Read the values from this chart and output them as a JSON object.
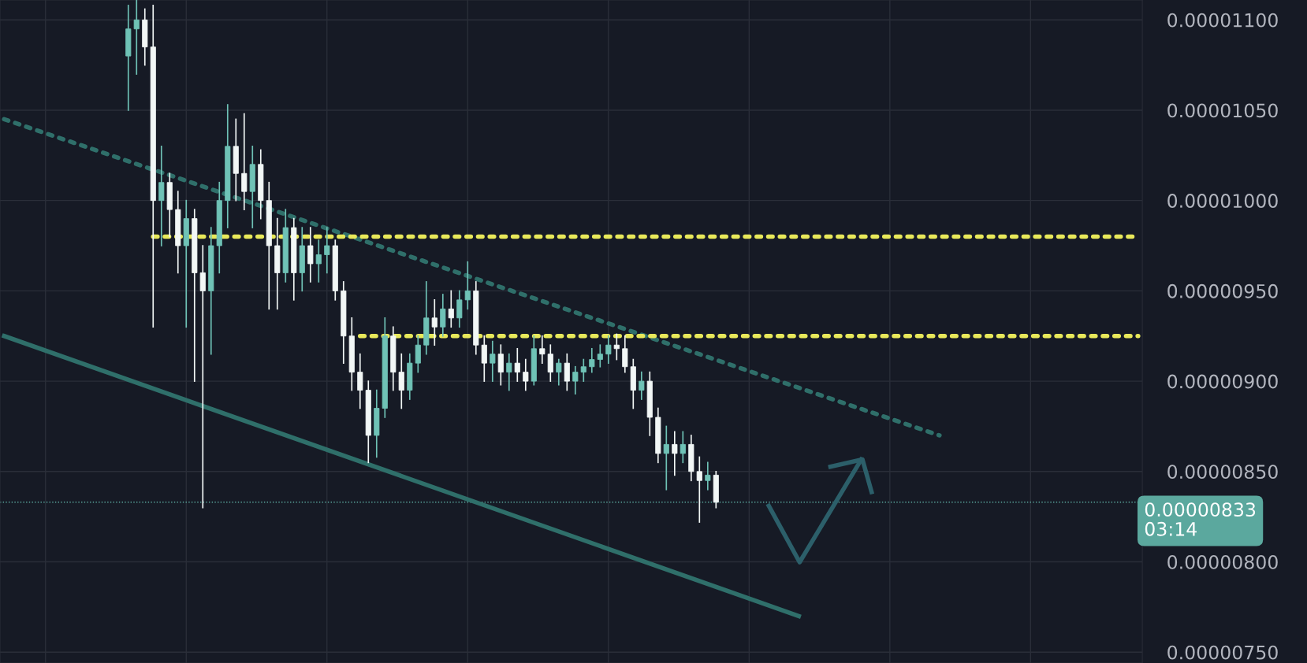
{
  "chart_data": {
    "type": "candlestick",
    "categories": [
      null,
      null,
      null,
      null,
      null,
      null,
      null,
      null,
      null,
      null,
      null,
      null,
      null,
      null,
      null,
      null,
      null,
      null,
      null,
      null,
      null,
      null,
      null,
      null,
      null,
      null,
      null,
      null,
      null,
      null,
      null,
      null,
      null,
      null,
      null,
      null,
      null,
      null,
      null,
      null,
      null,
      null,
      null,
      null,
      null,
      null,
      null,
      null,
      null,
      null,
      null,
      null,
      null,
      null,
      null,
      null,
      null,
      null,
      null,
      null,
      null,
      null,
      null,
      null,
      null,
      null,
      null,
      null,
      null,
      null,
      null,
      null,
      null,
      null,
      null,
      null,
      null,
      null,
      null,
      null,
      null,
      null,
      null,
      null,
      null,
      null,
      null,
      null,
      null,
      null,
      null,
      null,
      null,
      null,
      null,
      null,
      null,
      null,
      null,
      null,
      null,
      null,
      null,
      null,
      null,
      null,
      null,
      null,
      null,
      null,
      null,
      null,
      null,
      null,
      null,
      null,
      null,
      null,
      null,
      null,
      null,
      null,
      null,
      null,
      null,
      null,
      null,
      null,
      null,
      null,
      null,
      null,
      null,
      null,
      null,
      null,
      null,
      null
    ],
    "ylim": [
      7.44e-06,
      1.111e-05
    ],
    "yticks": [
      {
        "value": 1.1e-05,
        "label": "0.00001100"
      },
      {
        "value": 1.05e-05,
        "label": "0.00001050"
      },
      {
        "value": 1e-05,
        "label": "0.00001000"
      },
      {
        "value": 9.5e-06,
        "label": "0.00000950"
      },
      {
        "value": 9e-06,
        "label": "0.00000900"
      },
      {
        "value": 8.5e-06,
        "label": "0.00000850"
      },
      {
        "value": 8e-06,
        "label": "0.00000800"
      },
      {
        "value": 7.5e-06,
        "label": "0.00000750"
      }
    ],
    "grid": true,
    "tick_labels": "y",
    "series": [
      {
        "colors": [
          null,
          null,
          null,
          null,
          null,
          null,
          null,
          null,
          null,
          null,
          null,
          null,
          null,
          null,
          null,
          "#6fc2b6",
          "#6fc2b6",
          "#f2f7f6",
          "#f2f7f6",
          "#6fc2b6",
          "#f2f7f6",
          "#f2f7f6",
          "#6fc2b6",
          "#f2f7f6",
          "#f2f7f6",
          "#6fc2b6",
          "#6fc2b6",
          "#6fc2b6",
          "#f2f7f6",
          "#f2f7f6",
          "#6fc2b6",
          "#f2f7f6",
          "#f2f7f6",
          "#f2f7f6",
          "#6fc2b6",
          "#f2f7f6",
          "#6fc2b6",
          "#f2f7f6",
          "#6fc2b6",
          "#6fc2b6",
          "#f2f7f6",
          "#f2f7f6",
          "#f2f7f6",
          "#f2f7f6",
          "#f2f7f6",
          "#6fc2b6",
          "#6fc2b6",
          "#f2f7f6",
          "#f2f7f6",
          "#6fc2b6",
          "#6fc2b6",
          "#6fc2b6",
          "#f2f7f6",
          "#6fc2b6",
          "#f2f7f6",
          "#6fc2b6",
          "#6fc2b6",
          "#f2f7f6",
          "#f2f7f6",
          "#6fc2b6",
          "#f2f7f6",
          "#6fc2b6",
          "#f2f7f6",
          "#f2f7f6",
          "#6fc2b6",
          "#f2f7f6",
          "#f2f7f6",
          "#6fc2b6",
          "#f2f7f6",
          "#6fc2b6",
          "#6fc2b6",
          "#6fc2b6",
          "#6fc2b6",
          "#6fc2b6",
          "#f2f7f6",
          "#f2f7f6",
          "#f2f7f6",
          "#6fc2b6",
          "#f2f7f6",
          "#f2f7f6",
          "#6fc2b6",
          "#f2f7f6",
          "#6fc2b6",
          "#f2f7f6",
          "#f2f7f6",
          "#6fc2b6",
          "#f2f7f6",
          null,
          null,
          null,
          null,
          null,
          null,
          null,
          null,
          null,
          null,
          null,
          null,
          null,
          null,
          null,
          null,
          null,
          null,
          null,
          null,
          null,
          null,
          null,
          null,
          null,
          null,
          null,
          null,
          null,
          null,
          null,
          null,
          null,
          null,
          null,
          null,
          null,
          null,
          null,
          null,
          null,
          null,
          null,
          null,
          null,
          null,
          null,
          null,
          null,
          null,
          null
        ],
        "ohlc": [
          null,
          null,
          null,
          null,
          null,
          null,
          null,
          null,
          null,
          null,
          null,
          null,
          null,
          null,
          null,
          [
            1.08e-05,
            1.108e-05,
            1.05e-05,
            1.095e-05
          ],
          [
            1.095e-05,
            1.111e-05,
            1.07e-05,
            1.1e-05
          ],
          [
            1.1e-05,
            1.106e-05,
            1.075e-05,
            1.085e-05
          ],
          [
            1.085e-05,
            1.108e-05,
            9.3e-06,
            1e-05
          ],
          [
            1e-05,
            1.03e-05,
            9.75e-06,
            1.01e-05
          ],
          [
            1.01e-05,
            1.015e-05,
            9.8e-06,
            9.95e-06
          ],
          [
            9.95e-06,
            1.005e-05,
            9.6e-06,
            9.75e-06
          ],
          [
            9.75e-06,
            1e-05,
            9.3e-06,
            9.9e-06
          ],
          [
            9.9e-06,
            9.95e-06,
            9e-06,
            9.6e-06
          ],
          [
            9.6e-06,
            9.75e-06,
            8.3e-06,
            9.5e-06
          ],
          [
            9.5e-06,
            9.85e-06,
            9.15e-06,
            9.75e-06
          ],
          [
            9.75e-06,
            1.01e-05,
            9.6e-06,
            1e-05
          ],
          [
            1e-05,
            1.053e-05,
            9.85e-06,
            1.03e-05
          ],
          [
            1.03e-05,
            1.045e-05,
            1e-05,
            1.015e-05
          ],
          [
            1.015e-05,
            1.048e-05,
            9.95e-06,
            1.005e-05
          ],
          [
            1.005e-05,
            1.03e-05,
            9.85e-06,
            1.02e-05
          ],
          [
            1.02e-05,
            1.028e-05,
            9.9e-06,
            1e-05
          ],
          [
            1e-05,
            1.01e-05,
            9.4e-06,
            9.75e-06
          ],
          [
            9.75e-06,
            9.9e-06,
            9.4e-06,
            9.6e-06
          ],
          [
            9.6e-06,
            9.95e-06,
            9.55e-06,
            9.85e-06
          ],
          [
            9.85e-06,
            9.9e-06,
            9.45e-06,
            9.6e-06
          ],
          [
            9.6e-06,
            9.85e-06,
            9.5e-06,
            9.75e-06
          ],
          [
            9.75e-06,
            9.85e-06,
            9.55e-06,
            9.65e-06
          ],
          [
            9.65e-06,
            9.78e-06,
            9.55e-06,
            9.7e-06
          ],
          [
            9.7e-06,
            9.85e-06,
            9.6e-06,
            9.75e-06
          ],
          [
            9.75e-06,
            9.78e-06,
            9.45e-06,
            9.5e-06
          ],
          [
            9.5e-06,
            9.55e-06,
            9.1e-06,
            9.25e-06
          ],
          [
            9.25e-06,
            9.35e-06,
            8.95e-06,
            9.05e-06
          ],
          [
            9.05e-06,
            9.15e-06,
            8.85e-06,
            8.95e-06
          ],
          [
            8.95e-06,
            9e-06,
            8.55e-06,
            8.7e-06
          ],
          [
            8.7e-06,
            8.95e-06,
            8.58e-06,
            8.85e-06
          ],
          [
            8.85e-06,
            9.35e-06,
            8.8e-06,
            9.25e-06
          ],
          [
            9.25e-06,
            9.3e-06,
            8.95e-06,
            9.05e-06
          ],
          [
            9.05e-06,
            9.15e-06,
            8.85e-06,
            8.95e-06
          ],
          [
            8.95e-06,
            9.15e-06,
            8.9e-06,
            9.1e-06
          ],
          [
            9.1e-06,
            9.25e-06,
            9.05e-06,
            9.2e-06
          ],
          [
            9.2e-06,
            9.55e-06,
            9.15e-06,
            9.35e-06
          ],
          [
            9.35e-06,
            9.45e-06,
            9.2e-06,
            9.3e-06
          ],
          [
            9.3e-06,
            9.48e-06,
            9.25e-06,
            9.4e-06
          ],
          [
            9.4e-06,
            9.5e-06,
            9.3e-06,
            9.35e-06
          ],
          [
            9.35e-06,
            9.5e-06,
            9.3e-06,
            9.45e-06
          ],
          [
            9.45e-06,
            9.66e-06,
            9.4e-06,
            9.5e-06
          ],
          [
            9.5e-06,
            9.55e-06,
            9.15e-06,
            9.2e-06
          ],
          [
            9.2e-06,
            9.25e-06,
            9e-06,
            9.1e-06
          ],
          [
            9.1e-06,
            9.22e-06,
            9e-06,
            9.15e-06
          ],
          [
            9.15e-06,
            9.2e-06,
            8.98e-06,
            9.05e-06
          ],
          [
            9.05e-06,
            9.15e-06,
            8.95e-06,
            9.1e-06
          ],
          [
            9.1e-06,
            9.18e-06,
            9e-06,
            9.05e-06
          ],
          [
            9.05e-06,
            9.12e-06,
            8.95e-06,
            9e-06
          ],
          [
            9e-06,
            9.25e-06,
            8.98e-06,
            9.18e-06
          ],
          [
            9.18e-06,
            9.25e-06,
            9.1e-06,
            9.15e-06
          ],
          [
            9.15e-06,
            9.2e-06,
            9e-06,
            9.05e-06
          ],
          [
            9.05e-06,
            9.12e-06,
            8.98e-06,
            9.1e-06
          ],
          [
            9.1e-06,
            9.15e-06,
            8.95e-06,
            9e-06
          ],
          [
            9e-06,
            9.08e-06,
            8.93e-06,
            9.05e-06
          ],
          [
            9.05e-06,
            9.12e-06,
            9e-06,
            9.08e-06
          ],
          [
            9.08e-06,
            9.18e-06,
            9.05e-06,
            9.12e-06
          ],
          [
            9.12e-06,
            9.2e-06,
            9.08e-06,
            9.15e-06
          ],
          [
            9.15e-06,
            9.25e-06,
            9.1e-06,
            9.2e-06
          ],
          [
            9.2e-06,
            9.26e-06,
            9.12e-06,
            9.18e-06
          ],
          [
            9.18e-06,
            9.25e-06,
            9.05e-06,
            9.08e-06
          ],
          [
            9.08e-06,
            9.12e-06,
            8.85e-06,
            8.95e-06
          ],
          [
            8.95e-06,
            9.05e-06,
            8.9e-06,
            9e-06
          ],
          [
            9e-06,
            9.05e-06,
            8.7e-06,
            8.8e-06
          ],
          [
            8.8e-06,
            8.85e-06,
            8.55e-06,
            8.6e-06
          ],
          [
            8.6e-06,
            8.75e-06,
            8.4e-06,
            8.65e-06
          ],
          [
            8.65e-06,
            8.72e-06,
            8.48e-06,
            8.6e-06
          ],
          [
            8.6e-06,
            8.72e-06,
            8.55e-06,
            8.65e-06
          ],
          [
            8.65e-06,
            8.7e-06,
            8.45e-06,
            8.5e-06
          ],
          [
            8.5e-06,
            8.58e-06,
            8.22e-06,
            8.45e-06
          ],
          [
            8.45e-06,
            8.55e-06,
            8.4e-06,
            8.48e-06
          ],
          [
            8.48e-06,
            8.5e-06,
            8.3e-06,
            8.33e-06
          ],
          null,
          null,
          null,
          null,
          null,
          null,
          null,
          null,
          null,
          null,
          null,
          null,
          null,
          null,
          null,
          null,
          null,
          null,
          null,
          null,
          null,
          null,
          null,
          null,
          null,
          null,
          null,
          null,
          null,
          null,
          null,
          null,
          null,
          null,
          null,
          null,
          null,
          null,
          null,
          null,
          null,
          null,
          null,
          null,
          null,
          null,
          null,
          null,
          null,
          null,
          null
        ]
      },
      {
        "type": "line",
        "color": "#2f6f6a",
        "line_style": "dotted",
        "values": [
          1.045e-05,
          null,
          null,
          null,
          null,
          null,
          null,
          null,
          null,
          null,
          null,
          null,
          null,
          null,
          null,
          null,
          null,
          null,
          null,
          null,
          null,
          null,
          null,
          null,
          null,
          null,
          null,
          null,
          null,
          null,
          null,
          null,
          null,
          null,
          null,
          null,
          null,
          null,
          null,
          null,
          null,
          null,
          null,
          null,
          null,
          null,
          null,
          null,
          null,
          null,
          null,
          null,
          null,
          null,
          null,
          null,
          null,
          null,
          null,
          null,
          null,
          null,
          null,
          null,
          null,
          null,
          null,
          null,
          null,
          null,
          null,
          null,
          null,
          null,
          null,
          null,
          null,
          null,
          null,
          null,
          null,
          null,
          null,
          null,
          null,
          null,
          null,
          null,
          null,
          null,
          null,
          null,
          null,
          null,
          null,
          null,
          null,
          null,
          null,
          null,
          null,
          null,
          null,
          null,
          null,
          null,
          null,
          null,
          null,
          null,
          null,
          null,
          null,
          8.7e-06,
          null,
          null,
          null,
          null,
          null,
          null,
          null,
          null,
          null,
          null,
          null,
          null,
          null,
          null,
          null,
          null,
          null,
          null,
          null,
          null,
          null,
          null,
          null,
          null
        ]
      },
      {
        "type": "line",
        "color": "#2f6f6a",
        "line_style": "solid",
        "values": [
          9.25e-06,
          null,
          null,
          null,
          null,
          null,
          null,
          null,
          null,
          null,
          null,
          null,
          null,
          null,
          null,
          null,
          null,
          null,
          null,
          null,
          null,
          null,
          null,
          null,
          null,
          null,
          null,
          null,
          null,
          null,
          null,
          null,
          null,
          null,
          null,
          null,
          null,
          null,
          null,
          null,
          null,
          null,
          null,
          null,
          null,
          null,
          null,
          null,
          null,
          null,
          null,
          null,
          null,
          null,
          null,
          null,
          null,
          null,
          null,
          null,
          null,
          null,
          null,
          null,
          null,
          null,
          null,
          null,
          null,
          null,
          null,
          null,
          null,
          null,
          null,
          null,
          null,
          null,
          null,
          null,
          null,
          null,
          null,
          null,
          null,
          null,
          null,
          null,
          null,
          null,
          null,
          null,
          null,
          null,
          null,
          null,
          7.7e-06,
          null,
          null,
          null,
          null,
          null,
          null,
          null,
          null,
          null,
          null,
          null,
          null,
          null,
          null,
          null,
          null,
          null,
          null,
          null,
          null,
          null,
          null,
          null,
          null,
          null,
          null,
          null,
          null,
          null,
          null,
          null,
          null,
          null,
          null,
          null,
          null,
          null,
          null,
          null,
          null,
          null
        ]
      },
      {
        "type": "line",
        "color": "#e8e85a",
        "line_style": "dotted",
        "values": [
          null,
          null,
          null,
          null,
          null,
          null,
          null,
          null,
          null,
          null,
          null,
          null,
          null,
          null,
          null,
          null,
          null,
          null,
          9.8e-06,
          null,
          null,
          null,
          null,
          null,
          null,
          null,
          null,
          null,
          null,
          null,
          null,
          null,
          null,
          null,
          null,
          null,
          null,
          null,
          null,
          null,
          null,
          null,
          null,
          null,
          null,
          null,
          null,
          null,
          null,
          null,
          null,
          null,
          null,
          null,
          null,
          null,
          null,
          null,
          null,
          null,
          null,
          null,
          null,
          null,
          null,
          null,
          null,
          null,
          null,
          null,
          null,
          null,
          null,
          null,
          null,
          null,
          null,
          null,
          null,
          null,
          null,
          null,
          null,
          null,
          null,
          null,
          null,
          null,
          null,
          null,
          null,
          null,
          null,
          null,
          null,
          null,
          null,
          null,
          null,
          null,
          null,
          null,
          null,
          null,
          null,
          null,
          null,
          null,
          null,
          null,
          null,
          null,
          null,
          null,
          null,
          null,
          null,
          null,
          null,
          null,
          null,
          null,
          null,
          null,
          null,
          null,
          null,
          null,
          null,
          null,
          null,
          null,
          null,
          null,
          null,
          null,
          null,
          9.8e-06
        ]
      },
      {
        "type": "line",
        "color": "#e8e85a",
        "line_style": "dotted",
        "values": [
          null,
          null,
          null,
          null,
          null,
          null,
          null,
          null,
          null,
          null,
          null,
          null,
          null,
          null,
          null,
          null,
          null,
          null,
          null,
          null,
          null,
          null,
          null,
          null,
          null,
          null,
          null,
          null,
          null,
          null,
          null,
          null,
          null,
          null,
          null,
          null,
          null,
          null,
          null,
          null,
          null,
          null,
          null,
          9.25e-06,
          null,
          null,
          null,
          null,
          null,
          null,
          null,
          null,
          null,
          null,
          null,
          null,
          null,
          null,
          null,
          null,
          null,
          null,
          null,
          null,
          null,
          null,
          null,
          null,
          null,
          null,
          null,
          null,
          null,
          null,
          null,
          null,
          null,
          null,
          null,
          null,
          null,
          null,
          null,
          null,
          null,
          null,
          null,
          null,
          null,
          null,
          null,
          null,
          null,
          null,
          null,
          null,
          null,
          null,
          null,
          null,
          null,
          null,
          null,
          null,
          null,
          null,
          null,
          null,
          null,
          null,
          null,
          null,
          null,
          null,
          null,
          null,
          null,
          null,
          null,
          null,
          null,
          null,
          null,
          null,
          null,
          null,
          null,
          null,
          null,
          null,
          null,
          null,
          null,
          null,
          null,
          null,
          null,
          9.25e-06
        ]
      }
    ],
    "ref_lines": [
      {
        "axis": "y",
        "value": 8.33e-06,
        "label": "0.00000833",
        "color": "#5ba89e",
        "line_style": "dotted"
      }
    ],
    "annotations": [
      "03:14"
    ]
  }
}
